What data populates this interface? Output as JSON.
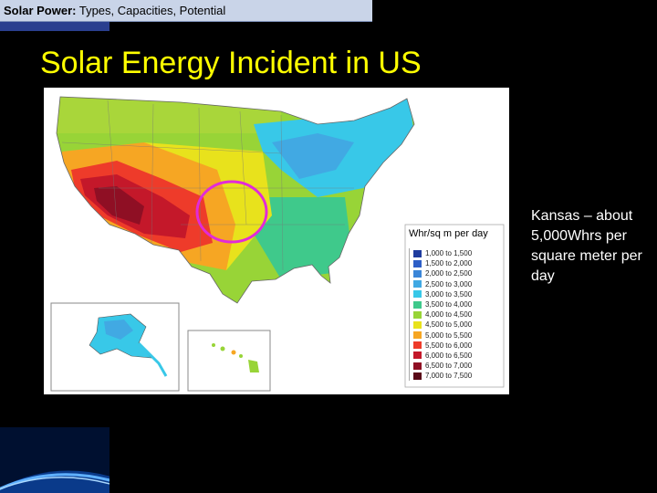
{
  "header": {
    "bold_part": "Solar Power:",
    "rest_part": " Types, Capacities, Potential"
  },
  "slide": {
    "title": "Solar Energy Incident in US",
    "note": "Kansas – about 5,000Whrs per square meter per day"
  },
  "map": {
    "legend": {
      "title": "Whr/sq m per day",
      "entries": [
        {
          "label": "1,000 to 1,500",
          "color": "#1f3c9e"
        },
        {
          "label": "1,500 to 2,000",
          "color": "#2e5fc7"
        },
        {
          "label": "2,000 to 2,500",
          "color": "#3b86d8"
        },
        {
          "label": "2,500 to 3,000",
          "color": "#41a9e3"
        },
        {
          "label": "3,000 to 3,500",
          "color": "#38c8e8"
        },
        {
          "label": "3,500 to 4,000",
          "color": "#3fc98b"
        },
        {
          "label": "4,000 to 4,500",
          "color": "#98d437"
        },
        {
          "label": "4,500 to 5,000",
          "color": "#e8e21c"
        },
        {
          "label": "5,000 to 5,500",
          "color": "#f6a623"
        },
        {
          "label": "5,500 to 6,000",
          "color": "#ee3b2a"
        },
        {
          "label": "6,000 to 6,500",
          "color": "#c4182a"
        },
        {
          "label": "6,500 to 7,000",
          "color": "#8f0f24"
        },
        {
          "label": "7,000 to 7,500",
          "color": "#5a0a18"
        }
      ]
    }
  }
}
